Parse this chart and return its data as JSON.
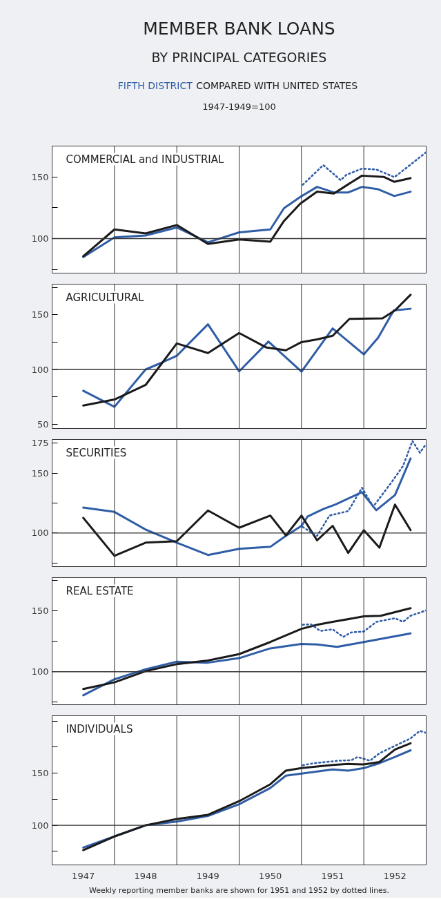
{
  "chart_data": [
    {
      "type": "other",
      "title": "MEMBER BANK LOANS",
      "subtitle": "BY PRINCIPAL CATEGORIES",
      "annotations": [
        "FIFTH DISTRICT",
        "COMPARED WITH UNITED STATES",
        "1947-1949=100"
      ]
    },
    {
      "type": "line",
      "title": "COMMERCIAL and INDUSTRIAL",
      "xlim": [
        1947,
        1953
      ],
      "ylim": [
        72,
        175
      ],
      "yticks": [
        {
          "value": 75,
          "label": null
        },
        100,
        {
          "value": 125,
          "label": null
        },
        150
      ],
      "tick_labels": "y",
      "ref_lines": [
        {
          "axis": "y",
          "value": 100,
          "label": null
        },
        {
          "axis": "x",
          "value": 1948,
          "label": null
        },
        {
          "axis": "x",
          "value": 1949,
          "label": null
        },
        {
          "axis": "x",
          "value": 1950,
          "label": null
        },
        {
          "axis": "x",
          "value": 1951,
          "label": null
        },
        {
          "axis": "x",
          "value": 1952,
          "label": null
        }
      ],
      "series": [
        {
          "color": "#2f5da6",
          "x": [
            1947.5,
            1948.0,
            1948.5,
            1949.0,
            1949.5,
            1950.0,
            1950.5,
            1950.72,
            1950.98,
            1951.25,
            1951.52,
            1951.75,
            1951.97,
            1952.23,
            1952.49,
            1952.75
          ],
          "values": [
            85,
            101,
            102.5,
            109,
            97,
            105,
            107.4,
            124.6,
            133.7,
            141.9,
            137.4,
            137.4,
            141.9,
            140,
            134.5,
            138
          ]
        },
        {
          "color": "#1a1a1a",
          "x": [
            1947.5,
            1948.0,
            1948.5,
            1949.0,
            1949.5,
            1950.0,
            1950.5,
            1950.72,
            1950.98,
            1951.25,
            1951.52,
            1951.75,
            1951.97,
            1952.32,
            1952.49,
            1952.75
          ],
          "values": [
            85.7,
            107.4,
            104.2,
            111,
            95.6,
            99.3,
            97.5,
            114.3,
            128.3,
            138,
            136.5,
            144,
            151,
            150,
            146,
            149
          ]
        },
        {
          "color": "#2f5da6",
          "line_style": "dotted",
          "x": [
            1951.02,
            1951.35,
            1951.63,
            1951.72,
            1951.97,
            1952.2,
            1952.49,
            1952.6,
            1952.75,
            1953.0
          ],
          "values": [
            143.6,
            159.6,
            147.3,
            151.7,
            156.7,
            156,
            149.8,
            154,
            160,
            170
          ]
        }
      ]
    },
    {
      "type": "line",
      "title": "AGRICULTURAL",
      "xlim": [
        1947,
        1953
      ],
      "ylim": [
        46,
        178
      ],
      "yticks": [
        50,
        {
          "value": 75,
          "label": null
        },
        100,
        {
          "value": 125,
          "label": null
        },
        150,
        {
          "value": 175,
          "label": null
        }
      ],
      "tick_labels": "y",
      "ref_lines": [
        {
          "axis": "y",
          "value": 100,
          "label": null
        },
        {
          "axis": "x",
          "value": 1948,
          "label": null
        },
        {
          "axis": "x",
          "value": 1949,
          "label": null
        },
        {
          "axis": "x",
          "value": 1950,
          "label": null
        },
        {
          "axis": "x",
          "value": 1951,
          "label": null
        },
        {
          "axis": "x",
          "value": 1952,
          "label": null
        }
      ],
      "series": [
        {
          "color": "#2f5da6",
          "x": [
            1947.5,
            1948.0,
            1948.5,
            1948.75,
            1949.0,
            1949.5,
            1950.0,
            1950.47,
            1951.0,
            1951.5,
            1952.0,
            1952.23,
            1952.48,
            1952.75
          ],
          "values": [
            80.5,
            65.8,
            100,
            106,
            112.5,
            141.3,
            98.3,
            125.5,
            98,
            137.5,
            113.8,
            129,
            154,
            155.5
          ]
        },
        {
          "color": "#1a1a1a",
          "x": [
            1947.5,
            1948.0,
            1948.5,
            1949.0,
            1949.5,
            1950.0,
            1950.44,
            1950.75,
            1951.0,
            1951.25,
            1951.5,
            1951.77,
            1952.3,
            1952.5,
            1952.75
          ],
          "values": [
            67,
            72.5,
            85.8,
            123.8,
            115,
            133.3,
            120,
            117.5,
            125,
            127.5,
            130.8,
            146.3,
            146.8,
            154,
            168.3
          ]
        }
      ]
    },
    {
      "type": "line",
      "title": "SECURITIES",
      "xlim": [
        1947,
        1953
      ],
      "ylim": [
        72,
        178
      ],
      "yticks": [
        {
          "value": 75,
          "label": null
        },
        100,
        {
          "value": 125,
          "label": null
        },
        150,
        175
      ],
      "tick_labels": "y",
      "ref_lines": [
        {
          "axis": "y",
          "value": 100,
          "label": null
        },
        {
          "axis": "x",
          "value": 1948,
          "label": null
        },
        {
          "axis": "x",
          "value": 1949,
          "label": null
        },
        {
          "axis": "x",
          "value": 1950,
          "label": null
        },
        {
          "axis": "x",
          "value": 1951,
          "label": null
        },
        {
          "axis": "x",
          "value": 1952,
          "label": null
        }
      ],
      "series": [
        {
          "color": "#2f5da6",
          "x": [
            1947.5,
            1948.0,
            1948.5,
            1949.0,
            1949.5,
            1950.0,
            1950.5,
            1950.75,
            1951.0,
            1951.1,
            1951.35,
            1951.55,
            1951.97,
            1952.2,
            1952.5,
            1952.75
          ],
          "values": [
            121.2,
            117.6,
            102.9,
            92,
            81.7,
            86.8,
            88.5,
            97.6,
            106,
            113.9,
            120,
            123.9,
            134.1,
            119,
            131.7,
            162.2
          ]
        },
        {
          "color": "#1a1a1a",
          "x": [
            1947.5,
            1948.0,
            1948.5,
            1949.0,
            1949.5,
            1950.0,
            1950.5,
            1950.75,
            1951.0,
            1951.25,
            1951.5,
            1951.75,
            1952.0,
            1952.25,
            1952.5,
            1952.75
          ],
          "values": [
            112.7,
            81,
            92,
            93.2,
            118.8,
            104.4,
            114.6,
            98,
            114.6,
            93.9,
            106,
            83.4,
            102.4,
            87.8,
            123.7,
            102.4
          ]
        },
        {
          "color": "#2f5da6",
          "line_style": "dotted",
          "x": [
            1951.02,
            1951.25,
            1951.45,
            1951.75,
            1951.97,
            1952.15,
            1952.45,
            1952.63,
            1952.78,
            1952.9,
            1953.0
          ],
          "values": [
            105,
            97.6,
            114.6,
            118.3,
            137.8,
            122,
            142.7,
            156,
            176.8,
            167,
            174.4
          ]
        }
      ]
    },
    {
      "type": "line",
      "title": "REAL ESTATE",
      "xlim": [
        1947,
        1953
      ],
      "ylim": [
        73,
        177
      ],
      "yticks": [
        {
          "value": 75,
          "label": null
        },
        100,
        {
          "value": 125,
          "label": null
        },
        150,
        {
          "value": 175,
          "label": null
        }
      ],
      "tick_labels": "y",
      "ref_lines": [
        {
          "axis": "y",
          "value": 100,
          "label": null
        },
        {
          "axis": "x",
          "value": 1948,
          "label": null
        },
        {
          "axis": "x",
          "value": 1949,
          "label": null
        },
        {
          "axis": "x",
          "value": 1950,
          "label": null
        },
        {
          "axis": "x",
          "value": 1951,
          "label": null
        },
        {
          "axis": "x",
          "value": 1952,
          "label": null
        }
      ],
      "series": [
        {
          "color": "#2f5da6",
          "x": [
            1947.5,
            1948.0,
            1948.5,
            1949.0,
            1949.5,
            1950.0,
            1950.5,
            1951.0,
            1951.25,
            1951.57,
            1952.0,
            1952.75
          ],
          "values": [
            80.7,
            93.8,
            102,
            108.2,
            107.4,
            111.1,
            119.1,
            122.8,
            122.3,
            120.3,
            124.3,
            131.4
          ]
        },
        {
          "color": "#1a1a1a",
          "x": [
            1947.5,
            1948.0,
            1948.5,
            1949.0,
            1949.5,
            1950.0,
            1950.5,
            1951.0,
            1951.25,
            1951.5,
            1952.0,
            1952.27,
            1952.75
          ],
          "values": [
            85.9,
            91.3,
            100.5,
            106.2,
            109.2,
            114.4,
            124.3,
            135.1,
            138.4,
            140.8,
            145.3,
            145.8,
            152
          ]
        },
        {
          "color": "#2f5da6",
          "line_style": "dotted",
          "x": [
            1951.02,
            1951.15,
            1951.3,
            1951.5,
            1951.67,
            1951.8,
            1952.0,
            1952.2,
            1952.5,
            1952.63,
            1952.75,
            1953.0
          ],
          "values": [
            138.4,
            138.9,
            133.4,
            134.7,
            128.5,
            132.2,
            132.9,
            140.8,
            143.8,
            140.8,
            145.8,
            150.2
          ]
        }
      ]
    },
    {
      "type": "line",
      "title": "INDIVIDUALS",
      "xlim": [
        1947,
        1953
      ],
      "ylim": [
        62,
        205
      ],
      "xticks": [
        {
          "value": 1947.5,
          "label": "1947"
        },
        {
          "value": 1948.5,
          "label": "1948"
        },
        {
          "value": 1949.5,
          "label": "1949"
        },
        {
          "value": 1950.5,
          "label": "1950"
        },
        {
          "value": 1951.5,
          "label": "1951"
        },
        {
          "value": 1952.5,
          "label": "1952"
        }
      ],
      "yticks": [
        {
          "value": 75,
          "label": null
        },
        100,
        {
          "value": 125,
          "label": null
        },
        150,
        {
          "value": 175,
          "label": null
        },
        {
          "value": 200,
          "label": null
        }
      ],
      "ref_lines": [
        {
          "axis": "y",
          "value": 100,
          "label": null
        },
        {
          "axis": "x",
          "value": 1948,
          "label": null
        },
        {
          "axis": "x",
          "value": 1949,
          "label": null
        },
        {
          "axis": "x",
          "value": 1950,
          "label": null
        },
        {
          "axis": "x",
          "value": 1951,
          "label": null
        },
        {
          "axis": "x",
          "value": 1952,
          "label": null
        }
      ],
      "annotations": [
        "Weekly reporting member banks are shown for 1951 and 1952 by dotted lines."
      ],
      "series": [
        {
          "color": "#2f5da6",
          "x": [
            1947.5,
            1948.0,
            1948.5,
            1949.0,
            1949.5,
            1950.0,
            1950.5,
            1950.75,
            1951.0,
            1951.5,
            1951.75,
            1952.0,
            1952.25,
            1952.5,
            1952.75
          ],
          "values": [
            78.6,
            89.3,
            100,
            103.6,
            109,
            120.2,
            135.7,
            147.6,
            149.5,
            153.6,
            152.4,
            154.8,
            159.5,
            165.5,
            171.9
          ]
        },
        {
          "color": "#1a1a1a",
          "x": [
            1947.5,
            1948.0,
            1948.5,
            1949.0,
            1949.5,
            1950.0,
            1950.5,
            1950.75,
            1951.0,
            1951.5,
            1951.75,
            1952.0,
            1952.25,
            1952.5,
            1952.75
          ],
          "values": [
            76.2,
            89.3,
            100,
            106,
            110,
            123.1,
            139.3,
            152.4,
            154.8,
            157.9,
            158.8,
            158.3,
            160.7,
            172.6,
            178.6
          ]
        },
        {
          "color": "#2f5da6",
          "line_style": "dotted",
          "x": [
            1951.02,
            1951.2,
            1951.4,
            1951.6,
            1951.8,
            1951.9,
            1952.1,
            1952.25,
            1952.5,
            1952.75,
            1952.9,
            1953.0
          ],
          "values": [
            157.6,
            159.5,
            160.7,
            161.9,
            162.4,
            165.5,
            161.9,
            169,
            176.2,
            183.3,
            190.5,
            188.6
          ]
        }
      ]
    }
  ]
}
